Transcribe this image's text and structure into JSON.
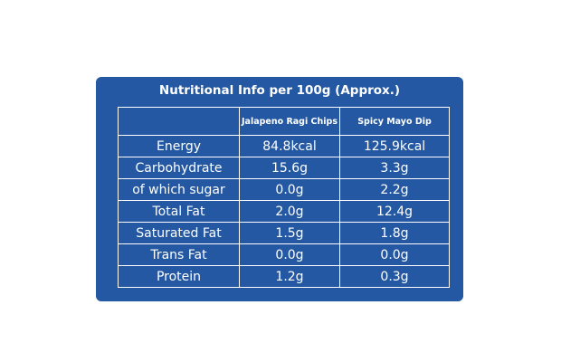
{
  "header": {
    "title": "Nutritional Info per 100g (Approx.)"
  },
  "table": {
    "columns": [
      "Jalapeno Ragi Chips",
      "Spicy Mayo Dip"
    ],
    "rows": [
      [
        "Energy",
        "84.8kcal",
        "125.9kcal"
      ],
      [
        "Carbohydrate",
        "15.6g",
        "3.3g"
      ],
      [
        "of which sugar",
        "0.0g",
        "2.2g"
      ],
      [
        "Total Fat",
        "2.0g",
        "12.4g"
      ],
      [
        "Saturated Fat",
        "1.5g",
        "1.8g"
      ],
      [
        "Trans Fat",
        "0.0g",
        "0.0g"
      ],
      [
        "Protein",
        "1.2g",
        "0.3g"
      ]
    ]
  }
}
